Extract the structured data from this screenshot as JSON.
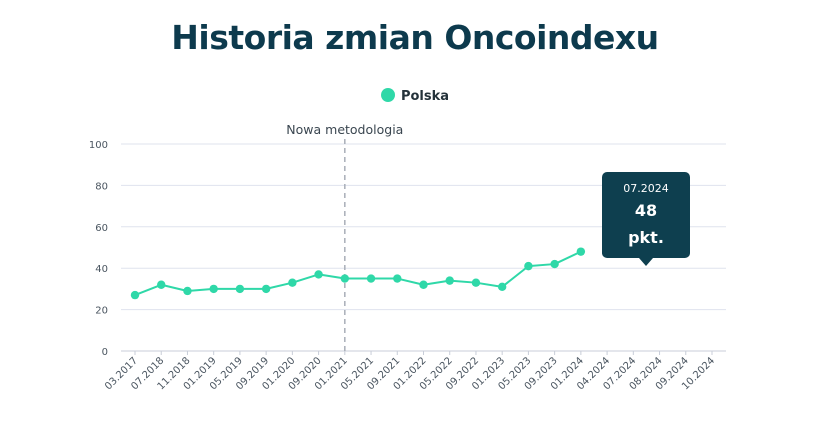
{
  "title": "Historia zmian Oncoindexu",
  "colors": {
    "title": "#0d3a4d",
    "series": "#2fd8a8",
    "tooltip_bg": "#0e3f4f",
    "grid": "#dfe3ee"
  },
  "chart_data": {
    "type": "line",
    "title": "Historia zmian Oncoindexu",
    "legend_placement": "top-center",
    "grid": true,
    "ylim": [
      0,
      100
    ],
    "yticks": [
      0,
      20,
      40,
      60,
      80,
      100
    ],
    "categories": [
      "03.2017",
      "07.2018",
      "11.2018",
      "01.2019",
      "05.2019",
      "09.2019",
      "01.2020",
      "09.2020",
      "01.2021",
      "05.2021",
      "09.2021",
      "01.2022",
      "05.2022",
      "09.2022",
      "01.2023",
      "05.2023",
      "09.2023",
      "01.2024",
      "04.2024",
      "07.2024",
      "08.2024",
      "09.2024",
      "10.2024"
    ],
    "series": [
      {
        "name": "Polska",
        "values": [
          27,
          32,
          29,
          30,
          30,
          30,
          33,
          37,
          35,
          35,
          35,
          32,
          34,
          33,
          31,
          41,
          42,
          48,
          null,
          null,
          null,
          null,
          null
        ]
      }
    ],
    "annotation": {
      "label": "Nowa metodologia",
      "category": "01.2021"
    },
    "tooltip": {
      "date": "07.2024",
      "value": "48",
      "unit": "pkt."
    }
  }
}
